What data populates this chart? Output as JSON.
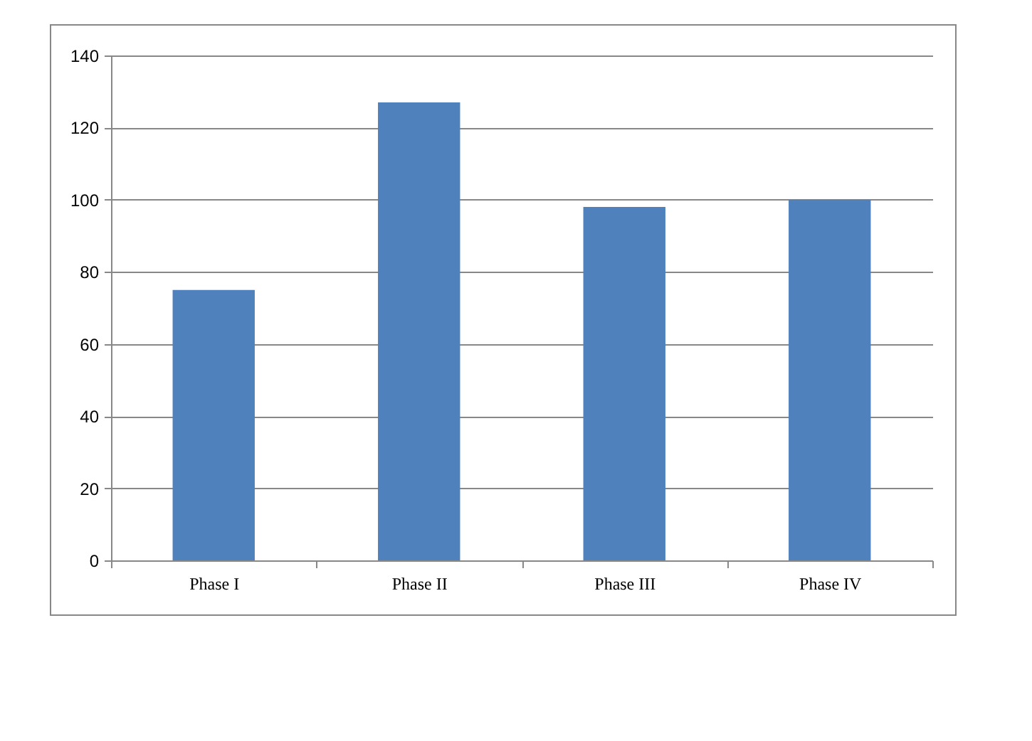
{
  "chart_data": {
    "type": "bar",
    "categories": [
      "Phase I",
      "Phase II",
      "Phase III",
      "Phase IV"
    ],
    "values": [
      75,
      127,
      98,
      100
    ],
    "color": "#4f81bd",
    "ylim": [
      0,
      140
    ],
    "yticks": [
      0,
      20,
      40,
      60,
      80,
      100,
      120,
      140
    ],
    "grid": "y"
  }
}
